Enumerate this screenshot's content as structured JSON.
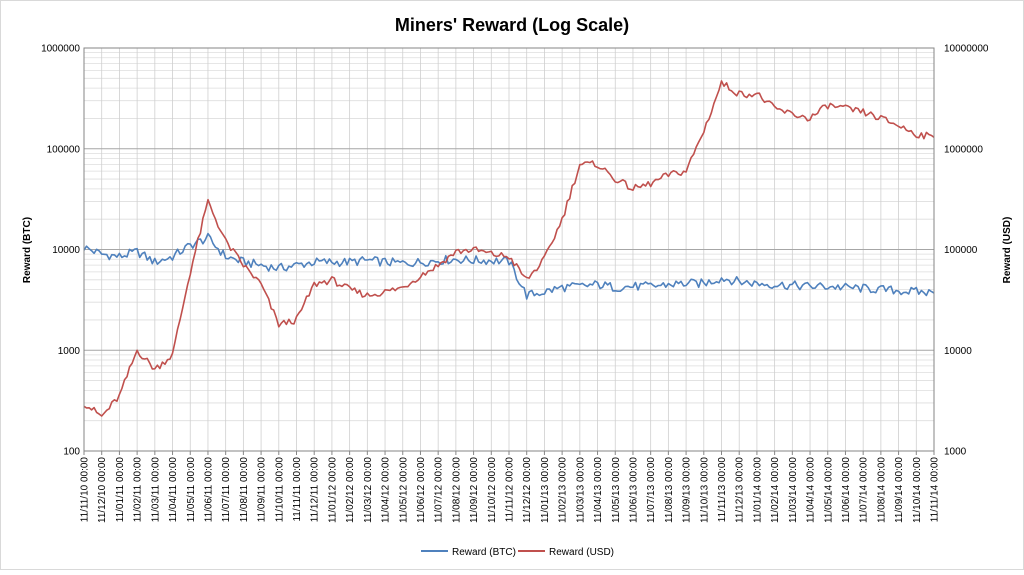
{
  "chart_data": {
    "type": "line",
    "title": "Miners' Reward (Log Scale)",
    "ylabel_left": "Reward (BTC)",
    "ylabel_right": "Reward (USD)",
    "xlabel": "",
    "y_scale": "log",
    "ylim_left": [
      100,
      1000000
    ],
    "ylim_right": [
      1000,
      10000000
    ],
    "yticks_left": [
      "100",
      "1000",
      "10000",
      "100000",
      "1000000"
    ],
    "yticks_right": [
      "1000",
      "10000",
      "100000",
      "1000000",
      "10000000"
    ],
    "grid": true,
    "legend": "bottom",
    "x_tick_labels": [
      "11/11/10 00:00",
      "11/12/10 00:00",
      "11/01/11 00:00",
      "11/02/11 00:00",
      "11/03/11 00:00",
      "11/04/11 00:00",
      "11/05/11 00:00",
      "11/06/11 00:00",
      "11/07/11 00:00",
      "11/08/11 00:00",
      "11/09/11 00:00",
      "11/10/11 00:00",
      "11/11/11 00:00",
      "11/12/11 00:00",
      "11/01/12 00:00",
      "11/02/12 00:00",
      "11/03/12 00:00",
      "11/04/12 00:00",
      "11/05/12 00:00",
      "11/06/12 00:00",
      "11/07/12 00:00",
      "11/08/12 00:00",
      "11/09/12 00:00",
      "11/10/12 00:00",
      "11/11/12 00:00",
      "11/12/12 00:00",
      "11/01/13 00:00",
      "11/02/13 00:00",
      "11/03/13 00:00",
      "11/04/13 00:00",
      "11/05/13 00:00",
      "11/06/13 00:00",
      "11/07/13 00:00",
      "11/08/13 00:00",
      "11/09/13 00:00",
      "11/10/13 00:00",
      "11/11/13 00:00",
      "11/12/13 00:00",
      "11/01/14 00:00",
      "11/02/14 00:00",
      "11/03/14 00:00",
      "11/04/14 00:00",
      "11/05/14 00:00",
      "11/06/14 00:00",
      "11/07/14 00:00",
      "11/08/14 00:00",
      "11/09/14 00:00",
      "11/10/14 00:00",
      "11/11/14 00:00"
    ],
    "series": [
      {
        "name": "Reward (BTC)",
        "axis": "left",
        "color": "#4f81bd",
        "x": [
          "11/11/10",
          "11/12/10",
          "11/01/11",
          "11/02/11",
          "11/03/11",
          "11/04/11",
          "11/05/11",
          "11/06/11",
          "11/07/11",
          "11/08/11",
          "11/09/11",
          "11/10/11",
          "11/11/11",
          "11/12/11",
          "11/01/12",
          "11/02/12",
          "11/03/12",
          "11/04/12",
          "11/05/12",
          "11/06/12",
          "11/07/12",
          "11/08/12",
          "11/09/12",
          "11/10/12",
          "11/11/12",
          "11/12/12",
          "11/01/13",
          "11/02/13",
          "11/03/13",
          "11/04/13",
          "11/05/13",
          "11/06/13",
          "11/07/13",
          "11/08/13",
          "11/09/13",
          "11/10/13",
          "11/11/13",
          "11/12/13",
          "11/01/14",
          "11/02/14",
          "11/03/14",
          "11/04/14",
          "11/05/14",
          "11/06/14",
          "11/07/14",
          "11/08/14",
          "11/09/14",
          "11/10/14",
          "11/11/14"
        ],
        "values": [
          10500,
          9000,
          8500,
          9500,
          7500,
          8500,
          11000,
          13000,
          8500,
          7500,
          7000,
          6500,
          7000,
          7500,
          7500,
          7500,
          7800,
          7500,
          7300,
          7500,
          7800,
          8000,
          7800,
          7800,
          7600,
          3500,
          3800,
          4200,
          4300,
          4500,
          4200,
          4300,
          4300,
          4500,
          4600,
          4600,
          5200,
          4800,
          4600,
          4500,
          4400,
          4300,
          4300,
          4200,
          4100,
          4000,
          3900,
          3800,
          3700
        ]
      },
      {
        "name": "Reward (USD)",
        "axis": "right",
        "color": "#c0504d",
        "x": [
          "11/11/10",
          "11/12/10",
          "11/01/11",
          "11/02/11",
          "11/03/11",
          "11/04/11",
          "11/05/11",
          "11/06/11",
          "11/07/11",
          "11/08/11",
          "11/09/11",
          "11/10/11",
          "11/11/11",
          "11/12/11",
          "11/01/12",
          "11/02/12",
          "11/03/12",
          "11/04/12",
          "11/05/12",
          "11/06/12",
          "11/07/12",
          "11/08/12",
          "11/09/12",
          "11/10/12",
          "11/11/12",
          "11/12/12",
          "11/01/13",
          "11/02/13",
          "11/03/13",
          "11/04/13",
          "11/05/13",
          "11/06/13",
          "11/07/13",
          "11/08/13",
          "11/09/13",
          "11/10/13",
          "11/11/13",
          "11/12/13",
          "11/01/14",
          "11/02/14",
          "11/03/14",
          "11/04/14",
          "11/05/14",
          "11/06/14",
          "11/07/14",
          "11/08/14",
          "11/09/14",
          "11/10/14",
          "11/11/14"
        ],
        "values": [
          3000,
          2200,
          3500,
          10000,
          6500,
          9000,
          60000,
          300000,
          120000,
          70000,
          45000,
          18000,
          20000,
          45000,
          50000,
          40000,
          35000,
          38000,
          42000,
          55000,
          70000,
          95000,
          100000,
          90000,
          85000,
          50000,
          80000,
          200000,
          700000,
          700000,
          500000,
          400000,
          450000,
          550000,
          600000,
          1500000,
          4500000,
          3500000,
          3500000,
          2500000,
          2200000,
          2000000,
          2700000,
          2500000,
          2300000,
          2000000,
          1700000,
          1400000,
          1300000
        ]
      }
    ]
  }
}
